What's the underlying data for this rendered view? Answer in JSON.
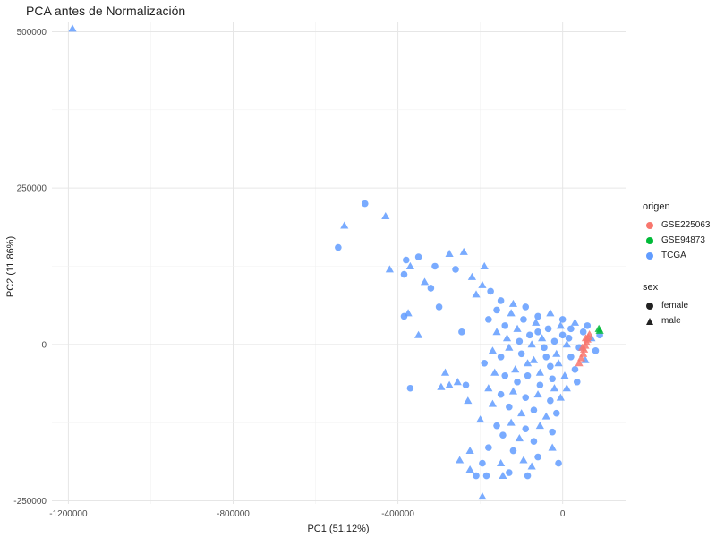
{
  "chart_data": {
    "type": "scatter",
    "title": "PCA antes de Normalización",
    "xlabel": "PC1 (51.12%)",
    "ylabel": "PC2 (11.86%)",
    "xlim": [
      -1240000,
      155000
    ],
    "ylim": [
      -255000,
      515000
    ],
    "x_ticks": [
      -1200000,
      -800000,
      -400000,
      0
    ],
    "x_tick_labels": [
      "-1200000",
      "-800000",
      "-400000",
      "0"
    ],
    "y_ticks": [
      -250000,
      0,
      250000,
      500000
    ],
    "y_tick_labels": [
      "-250000",
      "0",
      "250000",
      "500000"
    ],
    "grid": true,
    "legend_placement": "right",
    "legends": {
      "origen": {
        "title": "origen",
        "entries": [
          {
            "label": "GSE225063",
            "color": "#F8766D"
          },
          {
            "label": "GSE94873",
            "color": "#00BA38"
          },
          {
            "label": "TCGA",
            "color": "#619CFF"
          }
        ]
      },
      "sex": {
        "title": "sex",
        "entries": [
          {
            "label": "female",
            "shape": "circle"
          },
          {
            "label": "male",
            "shape": "triangle"
          }
        ]
      }
    },
    "series": [
      {
        "name": "TCGA",
        "color": "#619CFF",
        "points": [
          {
            "x": -1190000,
            "y": 505000,
            "shape": "triangle"
          },
          {
            "x": -480000,
            "y": 225000,
            "shape": "circle"
          },
          {
            "x": -430000,
            "y": 205000,
            "shape": "triangle"
          },
          {
            "x": -545000,
            "y": 155000,
            "shape": "circle"
          },
          {
            "x": -530000,
            "y": 190000,
            "shape": "triangle"
          },
          {
            "x": -420000,
            "y": 120000,
            "shape": "triangle"
          },
          {
            "x": -380000,
            "y": 135000,
            "shape": "circle"
          },
          {
            "x": -370000,
            "y": 125000,
            "shape": "triangle"
          },
          {
            "x": -385000,
            "y": 112000,
            "shape": "circle"
          },
          {
            "x": -350000,
            "y": 140000,
            "shape": "circle"
          },
          {
            "x": -335000,
            "y": 100000,
            "shape": "triangle"
          },
          {
            "x": -310000,
            "y": 125000,
            "shape": "circle"
          },
          {
            "x": -275000,
            "y": 145000,
            "shape": "triangle"
          },
          {
            "x": -260000,
            "y": 120000,
            "shape": "circle"
          },
          {
            "x": -240000,
            "y": 148000,
            "shape": "triangle"
          },
          {
            "x": -220000,
            "y": 108000,
            "shape": "triangle"
          },
          {
            "x": -190000,
            "y": 125000,
            "shape": "triangle"
          },
          {
            "x": -320000,
            "y": 90000,
            "shape": "circle"
          },
          {
            "x": -300000,
            "y": 60000,
            "shape": "circle"
          },
          {
            "x": -375000,
            "y": 50000,
            "shape": "triangle"
          },
          {
            "x": -385000,
            "y": 45000,
            "shape": "circle"
          },
          {
            "x": -350000,
            "y": 15000,
            "shape": "triangle"
          },
          {
            "x": -245000,
            "y": 20000,
            "shape": "circle"
          },
          {
            "x": -370000,
            "y": -70000,
            "shape": "circle"
          },
          {
            "x": -295000,
            "y": -68000,
            "shape": "triangle"
          },
          {
            "x": -275000,
            "y": -65000,
            "shape": "triangle"
          },
          {
            "x": -285000,
            "y": -45000,
            "shape": "triangle"
          },
          {
            "x": -255000,
            "y": -60000,
            "shape": "triangle"
          },
          {
            "x": -235000,
            "y": -65000,
            "shape": "circle"
          },
          {
            "x": -230000,
            "y": -90000,
            "shape": "triangle"
          },
          {
            "x": -210000,
            "y": 80000,
            "shape": "triangle"
          },
          {
            "x": -175000,
            "y": 85000,
            "shape": "circle"
          },
          {
            "x": -195000,
            "y": 95000,
            "shape": "triangle"
          },
          {
            "x": -150000,
            "y": 70000,
            "shape": "circle"
          },
          {
            "x": -120000,
            "y": 65000,
            "shape": "triangle"
          },
          {
            "x": -90000,
            "y": 60000,
            "shape": "circle"
          },
          {
            "x": -60000,
            "y": 45000,
            "shape": "circle"
          },
          {
            "x": -30000,
            "y": 50000,
            "shape": "triangle"
          },
          {
            "x": 0,
            "y": 40000,
            "shape": "circle"
          },
          {
            "x": 30000,
            "y": 35000,
            "shape": "triangle"
          },
          {
            "x": 60000,
            "y": 30000,
            "shape": "circle"
          },
          {
            "x": -180000,
            "y": 40000,
            "shape": "circle"
          },
          {
            "x": -160000,
            "y": 20000,
            "shape": "triangle"
          },
          {
            "x": -140000,
            "y": 30000,
            "shape": "circle"
          },
          {
            "x": -110000,
            "y": 25000,
            "shape": "triangle"
          },
          {
            "x": -80000,
            "y": 15000,
            "shape": "circle"
          },
          {
            "x": -50000,
            "y": 10000,
            "shape": "triangle"
          },
          {
            "x": -20000,
            "y": 5000,
            "shape": "circle"
          },
          {
            "x": 10000,
            "y": 0,
            "shape": "triangle"
          },
          {
            "x": 40000,
            "y": -5000,
            "shape": "circle"
          },
          {
            "x": -170000,
            "y": -10000,
            "shape": "triangle"
          },
          {
            "x": -150000,
            "y": -20000,
            "shape": "circle"
          },
          {
            "x": -130000,
            "y": -5000,
            "shape": "triangle"
          },
          {
            "x": -100000,
            "y": -15000,
            "shape": "circle"
          },
          {
            "x": -70000,
            "y": -25000,
            "shape": "triangle"
          },
          {
            "x": -40000,
            "y": -20000,
            "shape": "circle"
          },
          {
            "x": -10000,
            "y": -30000,
            "shape": "triangle"
          },
          {
            "x": 20000,
            "y": -20000,
            "shape": "circle"
          },
          {
            "x": -190000,
            "y": -30000,
            "shape": "circle"
          },
          {
            "x": -165000,
            "y": -45000,
            "shape": "triangle"
          },
          {
            "x": -140000,
            "y": -50000,
            "shape": "circle"
          },
          {
            "x": -115000,
            "y": -40000,
            "shape": "triangle"
          },
          {
            "x": -85000,
            "y": -50000,
            "shape": "circle"
          },
          {
            "x": -55000,
            "y": -45000,
            "shape": "triangle"
          },
          {
            "x": -25000,
            "y": -55000,
            "shape": "circle"
          },
          {
            "x": 5000,
            "y": -50000,
            "shape": "triangle"
          },
          {
            "x": -180000,
            "y": -70000,
            "shape": "triangle"
          },
          {
            "x": -150000,
            "y": -80000,
            "shape": "circle"
          },
          {
            "x": -120000,
            "y": -75000,
            "shape": "triangle"
          },
          {
            "x": -90000,
            "y": -85000,
            "shape": "circle"
          },
          {
            "x": -60000,
            "y": -80000,
            "shape": "triangle"
          },
          {
            "x": -30000,
            "y": -90000,
            "shape": "circle"
          },
          {
            "x": -5000,
            "y": -85000,
            "shape": "triangle"
          },
          {
            "x": -170000,
            "y": -95000,
            "shape": "triangle"
          },
          {
            "x": -130000,
            "y": -100000,
            "shape": "circle"
          },
          {
            "x": -100000,
            "y": -110000,
            "shape": "triangle"
          },
          {
            "x": -70000,
            "y": -105000,
            "shape": "circle"
          },
          {
            "x": -40000,
            "y": -115000,
            "shape": "triangle"
          },
          {
            "x": -15000,
            "y": -110000,
            "shape": "circle"
          },
          {
            "x": -200000,
            "y": -120000,
            "shape": "triangle"
          },
          {
            "x": -160000,
            "y": -130000,
            "shape": "circle"
          },
          {
            "x": -125000,
            "y": -125000,
            "shape": "triangle"
          },
          {
            "x": -90000,
            "y": -135000,
            "shape": "circle"
          },
          {
            "x": -55000,
            "y": -130000,
            "shape": "triangle"
          },
          {
            "x": -25000,
            "y": -140000,
            "shape": "circle"
          },
          {
            "x": -145000,
            "y": -145000,
            "shape": "circle"
          },
          {
            "x": -105000,
            "y": -150000,
            "shape": "triangle"
          },
          {
            "x": -70000,
            "y": -155000,
            "shape": "circle"
          },
          {
            "x": -225000,
            "y": -170000,
            "shape": "triangle"
          },
          {
            "x": -180000,
            "y": -165000,
            "shape": "circle"
          },
          {
            "x": -120000,
            "y": -170000,
            "shape": "circle"
          },
          {
            "x": -95000,
            "y": -185000,
            "shape": "triangle"
          },
          {
            "x": -60000,
            "y": -180000,
            "shape": "circle"
          },
          {
            "x": -25000,
            "y": -165000,
            "shape": "triangle"
          },
          {
            "x": -250000,
            "y": -185000,
            "shape": "triangle"
          },
          {
            "x": -195000,
            "y": -190000,
            "shape": "circle"
          },
          {
            "x": -150000,
            "y": -190000,
            "shape": "triangle"
          },
          {
            "x": -75000,
            "y": -195000,
            "shape": "triangle"
          },
          {
            "x": -10000,
            "y": -190000,
            "shape": "circle"
          },
          {
            "x": -225000,
            "y": -200000,
            "shape": "triangle"
          },
          {
            "x": -130000,
            "y": -205000,
            "shape": "circle"
          },
          {
            "x": -85000,
            "y": -210000,
            "shape": "circle"
          },
          {
            "x": -210000,
            "y": -210000,
            "shape": "circle"
          },
          {
            "x": -185000,
            "y": -210000,
            "shape": "circle"
          },
          {
            "x": -145000,
            "y": -210000,
            "shape": "triangle"
          },
          {
            "x": -195000,
            "y": -243000,
            "shape": "triangle"
          },
          {
            "x": 90000,
            "y": 15000,
            "shape": "circle"
          },
          {
            "x": 70000,
            "y": 10000,
            "shape": "triangle"
          },
          {
            "x": 50000,
            "y": 20000,
            "shape": "circle"
          },
          {
            "x": 80000,
            "y": -10000,
            "shape": "circle"
          },
          {
            "x": 55000,
            "y": -25000,
            "shape": "triangle"
          },
          {
            "x": 30000,
            "y": -40000,
            "shape": "circle"
          },
          {
            "x": 10000,
            "y": -70000,
            "shape": "triangle"
          },
          {
            "x": 35000,
            "y": -60000,
            "shape": "circle"
          },
          {
            "x": 20000,
            "y": 25000,
            "shape": "circle"
          },
          {
            "x": -5000,
            "y": 30000,
            "shape": "triangle"
          },
          {
            "x": -35000,
            "y": 25000,
            "shape": "circle"
          },
          {
            "x": -65000,
            "y": 35000,
            "shape": "triangle"
          },
          {
            "x": -95000,
            "y": 40000,
            "shape": "circle"
          },
          {
            "x": -125000,
            "y": 50000,
            "shape": "triangle"
          },
          {
            "x": -45000,
            "y": -5000,
            "shape": "circle"
          },
          {
            "x": -75000,
            "y": 0,
            "shape": "triangle"
          },
          {
            "x": -105000,
            "y": 5000,
            "shape": "circle"
          },
          {
            "x": -15000,
            "y": -15000,
            "shape": "triangle"
          },
          {
            "x": 15000,
            "y": 10000,
            "shape": "circle"
          },
          {
            "x": -55000,
            "y": -65000,
            "shape": "circle"
          },
          {
            "x": -20000,
            "y": -70000,
            "shape": "triangle"
          },
          {
            "x": 0,
            "y": 15000,
            "shape": "circle"
          },
          {
            "x": -30000,
            "y": -35000,
            "shape": "circle"
          },
          {
            "x": -60000,
            "y": 20000,
            "shape": "circle"
          },
          {
            "x": -85000,
            "y": -30000,
            "shape": "triangle"
          },
          {
            "x": -110000,
            "y": -60000,
            "shape": "circle"
          },
          {
            "x": -135000,
            "y": 10000,
            "shape": "triangle"
          },
          {
            "x": -160000,
            "y": 55000,
            "shape": "circle"
          }
        ]
      },
      {
        "name": "GSE225063",
        "color": "#F8766D",
        "points": [
          {
            "x": 40000,
            "y": -30000,
            "shape": "triangle"
          },
          {
            "x": 45000,
            "y": -22000,
            "shape": "triangle"
          },
          {
            "x": 50000,
            "y": -15000,
            "shape": "triangle"
          },
          {
            "x": 52000,
            "y": -8000,
            "shape": "triangle"
          },
          {
            "x": 55000,
            "y": -2000,
            "shape": "triangle"
          },
          {
            "x": 58000,
            "y": 3000,
            "shape": "triangle"
          },
          {
            "x": 60000,
            "y": 8000,
            "shape": "triangle"
          },
          {
            "x": 62000,
            "y": 12000,
            "shape": "triangle"
          },
          {
            "x": 65000,
            "y": 16000,
            "shape": "triangle"
          },
          {
            "x": 56000,
            "y": 10000,
            "shape": "triangle"
          },
          {
            "x": 48000,
            "y": -5000,
            "shape": "triangle"
          }
        ]
      },
      {
        "name": "GSE94873",
        "color": "#00BA38",
        "points": [
          {
            "x": 88000,
            "y": 25000,
            "shape": "triangle"
          },
          {
            "x": 90000,
            "y": 22000,
            "shape": "triangle"
          }
        ]
      }
    ]
  }
}
